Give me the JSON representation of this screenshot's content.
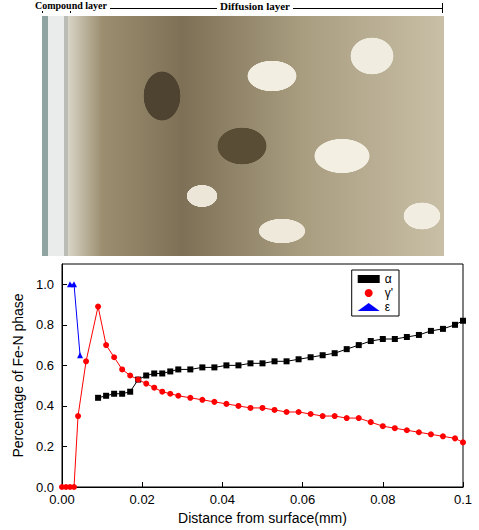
{
  "chart_data": {
    "type": "line",
    "annotations": [
      "Compound layer",
      "Diffusion layer"
    ],
    "x_label": "Distance from surface(mm)",
    "y_label": "Percentage of Fe-N phase",
    "xlim": [
      0,
      0.1
    ],
    "xticks": [
      {
        "value": 0,
        "label": "0.00"
      },
      0.02,
      0.04,
      0.06,
      0.08,
      {
        "value": 0.1,
        "label": "0.1"
      }
    ],
    "ylim": [
      0,
      1.1
    ],
    "yticks": [
      {
        "value": 0,
        "label": "0.0"
      },
      0.2,
      0.4,
      0.6,
      0.8,
      {
        "value": 1,
        "label": "1.0"
      }
    ],
    "grid": false,
    "legend": "upper right",
    "series": [
      {
        "name": "α",
        "color": "#000000",
        "marker": "square",
        "line_style": "solid",
        "x": [
          0.009,
          0.011,
          0.013,
          0.015,
          0.017,
          0.019,
          0.021,
          0.023,
          0.025,
          0.027,
          0.029,
          0.032,
          0.035,
          0.038,
          0.041,
          0.044,
          0.047,
          0.05,
          0.053,
          0.056,
          0.059,
          0.062,
          0.065,
          0.068,
          0.071,
          0.074,
          0.077,
          0.08,
          0.083,
          0.086,
          0.089,
          0.092,
          0.095,
          0.098,
          0.1
        ],
        "values": [
          0.44,
          0.45,
          0.46,
          0.46,
          0.47,
          0.53,
          0.55,
          0.56,
          0.56,
          0.57,
          0.58,
          0.58,
          0.59,
          0.59,
          0.6,
          0.6,
          0.61,
          0.61,
          0.62,
          0.62,
          0.63,
          0.64,
          0.65,
          0.66,
          0.68,
          0.7,
          0.72,
          0.73,
          0.73,
          0.74,
          0.75,
          0.77,
          0.78,
          0.8,
          0.82
        ]
      },
      {
        "name": "γ'",
        "color": "#ff0000",
        "marker": "circle",
        "line_style": "solid",
        "x": [
          0,
          0.001,
          0.002,
          0.003,
          0.004,
          0.006,
          0.009,
          0.011,
          0.013,
          0.015,
          0.017,
          0.019,
          0.021,
          0.023,
          0.025,
          0.027,
          0.029,
          0.032,
          0.035,
          0.038,
          0.041,
          0.044,
          0.047,
          0.05,
          0.053,
          0.056,
          0.059,
          0.062,
          0.065,
          0.068,
          0.071,
          0.074,
          0.077,
          0.08,
          0.083,
          0.086,
          0.089,
          0.092,
          0.095,
          0.098,
          0.1
        ],
        "values": [
          0,
          0,
          0,
          0,
          0.35,
          0.62,
          0.89,
          0.7,
          0.64,
          0.58,
          0.55,
          0.53,
          0.51,
          0.49,
          0.47,
          0.46,
          0.45,
          0.44,
          0.43,
          0.42,
          0.41,
          0.4,
          0.39,
          0.39,
          0.38,
          0.37,
          0.37,
          0.36,
          0.35,
          0.35,
          0.34,
          0.34,
          0.32,
          0.3,
          0.29,
          0.28,
          0.27,
          0.26,
          0.25,
          0.24,
          0.22
        ]
      },
      {
        "name": "ε",
        "color": "#0000ff",
        "marker": "triangle",
        "line_style": "solid",
        "x": [
          0.002,
          0.003,
          0.0045
        ],
        "values": [
          1.0,
          1.0,
          0.65
        ]
      }
    ]
  }
}
